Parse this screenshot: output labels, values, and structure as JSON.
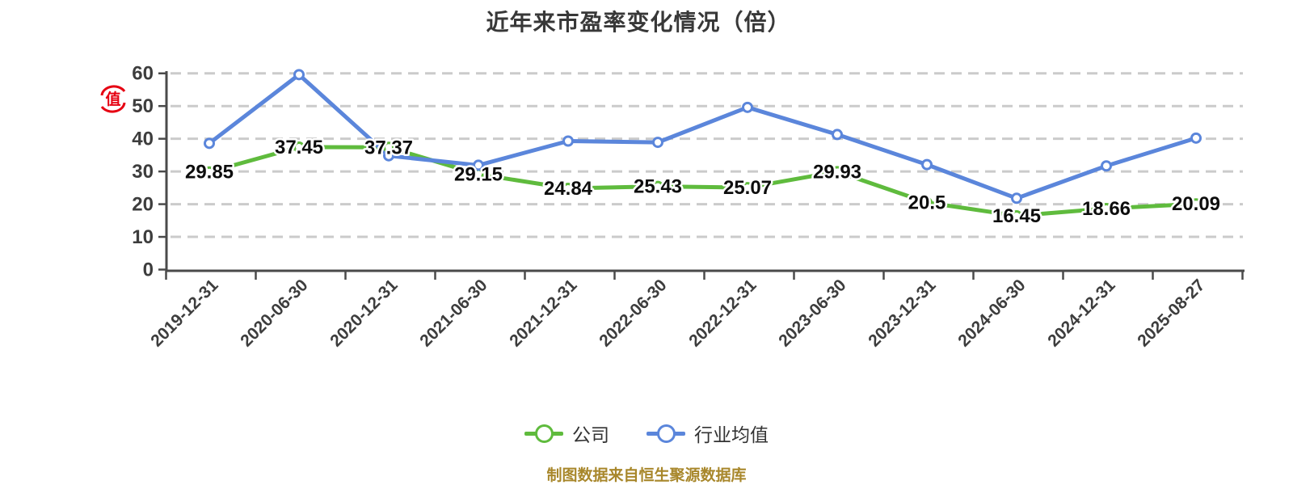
{
  "title": "近年来市盈率变化情况（倍）",
  "footer": "制图数据来自恒生聚源数据库",
  "stamp_char": "值",
  "colors": {
    "company": "#5FBB3D",
    "industry": "#5B86DB",
    "grid": "#CBCBCB",
    "axis": "#4A4A4A",
    "axis_text": "#3D3D3D",
    "label": "#0D0D0D",
    "footer": "#A8872B",
    "stamp": "#E60012"
  },
  "chart_data": {
    "type": "line",
    "title": "近年来市盈率变化情况（倍）",
    "categories": [
      "2019-12-31",
      "2020-06-30",
      "2020-12-31",
      "2021-06-30",
      "2021-12-31",
      "2022-06-30",
      "2022-12-31",
      "2023-06-30",
      "2023-12-31",
      "2024-06-30",
      "2024-12-31",
      "2025-08-27"
    ],
    "series": [
      {
        "name": "公司",
        "color": "#5FBB3D",
        "show_labels": true,
        "values": [
          29.85,
          37.45,
          37.37,
          29.15,
          24.84,
          25.43,
          25.07,
          29.93,
          20.5,
          16.45,
          18.66,
          20.09
        ]
      },
      {
        "name": "行业均值",
        "color": "#5B86DB",
        "show_labels": false,
        "values": [
          38.6,
          59.6,
          34.8,
          31.9,
          39.3,
          38.9,
          49.6,
          41.3,
          32.1,
          21.8,
          31.7,
          40.2
        ]
      }
    ],
    "xlabel": "",
    "ylabel": "",
    "ylim": [
      0,
      60
    ],
    "ytick_interval": 10,
    "grid": "dashed-horizontal",
    "legend_position": "bottom",
    "x_label_rotation": -45
  }
}
